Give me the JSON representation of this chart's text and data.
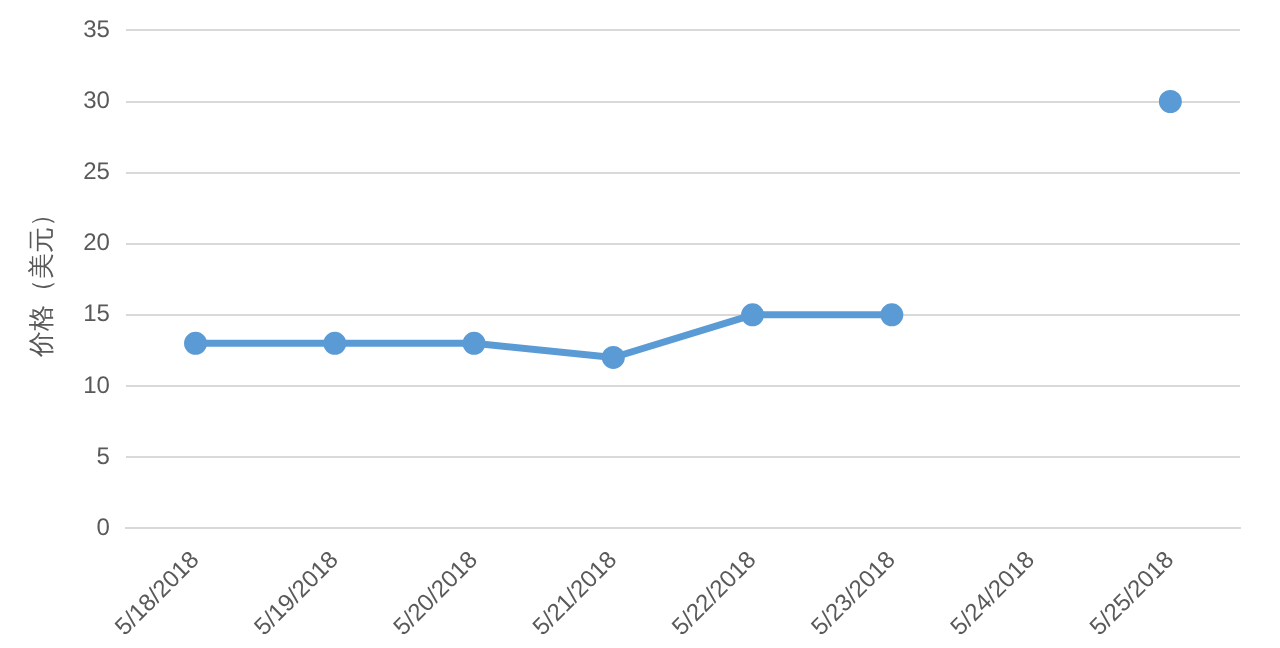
{
  "chart_data": {
    "type": "line",
    "ylabel": "价格（美元）",
    "categories": [
      "5/18/2018",
      "5/19/2018",
      "5/20/2018",
      "5/21/2018",
      "5/22/2018",
      "5/23/2018",
      "5/24/2018",
      "5/25/2018"
    ],
    "series": [
      {
        "color": "#5b9bd5",
        "values": [
          13,
          13,
          13,
          12,
          15,
          15,
          null,
          30
        ]
      }
    ],
    "ylim": [
      0,
      35
    ],
    "yticks": [
      0,
      5,
      10,
      15,
      20,
      25,
      30,
      35
    ],
    "grid": "y",
    "legend": false,
    "marker": "circle",
    "line_style": "solid"
  }
}
